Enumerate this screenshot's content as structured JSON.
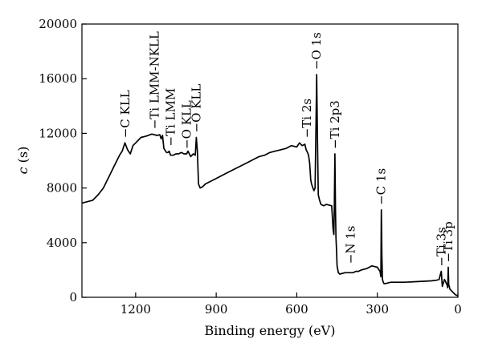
{
  "chart_data": {
    "type": "line",
    "title": "",
    "xlabel": "Binding energy (eV)",
    "ylabel_symbol": "c",
    "ylabel_unit": "(s)",
    "xlim": [
      1400,
      0
    ],
    "ylim": [
      0,
      20000
    ],
    "x_reversed": true,
    "grid": false,
    "legend": "none",
    "line_color": "#000000",
    "x_ticks": [
      1200,
      900,
      600,
      300,
      0
    ],
    "y_ticks": [
      0,
      4000,
      8000,
      12000,
      16000,
      20000
    ],
    "series": [
      {
        "x": [
          1400,
          1380,
          1360,
          1340,
          1320,
          1300,
          1280,
          1260,
          1250,
          1240,
          1230,
          1220,
          1210,
          1200,
          1180,
          1160,
          1140,
          1120,
          1110,
          1105,
          1100,
          1095,
          1085,
          1080,
          1075,
          1070,
          1060,
          1050,
          1040,
          1030,
          1020,
          1010,
          1005,
          995,
          985,
          978,
          974,
          970,
          966,
          960,
          950,
          940,
          920,
          900,
          880,
          860,
          840,
          820,
          800,
          780,
          760,
          740,
          720,
          700,
          680,
          660,
          640,
          620,
          600,
          590,
          580,
          570,
          565,
          560,
          556,
          552,
          548,
          545,
          540,
          536,
          532,
          529,
          526,
          523,
          520,
          515,
          510,
          500,
          490,
          480,
          470,
          465,
          462,
          460,
          458,
          456,
          454,
          452,
          450,
          445,
          440,
          420,
          400,
          390,
          380,
          370,
          360,
          340,
          320,
          300,
          290,
          287,
          285,
          283,
          281,
          278,
          275,
          270,
          250,
          200,
          150,
          100,
          80,
          70,
          65,
          62,
          58,
          50,
          40,
          38,
          36,
          34,
          32,
          30,
          20,
          10,
          0
        ],
        "y": [
          6900,
          7000,
          7100,
          7500,
          8000,
          8800,
          9600,
          10400,
          10700,
          11300,
          10800,
          10500,
          11100,
          11300,
          11700,
          11800,
          11950,
          11850,
          11900,
          11600,
          11850,
          10900,
          10600,
          10600,
          10700,
          10400,
          10400,
          10500,
          10500,
          10600,
          10500,
          10500,
          10700,
          10300,
          10500,
          10400,
          11700,
          10700,
          8300,
          8000,
          8100,
          8300,
          8500,
          8700,
          8900,
          9100,
          9300,
          9500,
          9700,
          9900,
          10100,
          10300,
          10400,
          10600,
          10700,
          10800,
          10900,
          11100,
          11000,
          11300,
          11100,
          11200,
          10800,
          10600,
          10400,
          9800,
          8600,
          8300,
          8000,
          7800,
          8000,
          12000,
          16300,
          11500,
          7500,
          7100,
          6800,
          6700,
          6800,
          6750,
          6700,
          5000,
          4600,
          6800,
          10500,
          6500,
          4400,
          3500,
          2300,
          1800,
          1700,
          1800,
          1800,
          1800,
          1900,
          1900,
          2000,
          2100,
          2300,
          2200,
          1900,
          1500,
          6400,
          3000,
          1300,
          1100,
          1000,
          1000,
          1100,
          1100,
          1150,
          1200,
          1250,
          1300,
          1700,
          1900,
          800,
          1300,
          900,
          700,
          2200,
          900,
          800,
          600,
          400,
          200,
          100
        ]
      }
    ],
    "peak_labels": [
      {
        "text": "C KLL",
        "x": 1238,
        "y": 11300
      },
      {
        "text": "Ti LMM-NKLL",
        "x": 1130,
        "y": 11950
      },
      {
        "text": "Ti LMM",
        "x": 1070,
        "y": 10700
      },
      {
        "text": "O KLL",
        "x": 1010,
        "y": 10500
      },
      {
        "text": "O KLL",
        "x": 974,
        "y": 11700
      },
      {
        "text": "Ti 2s",
        "x": 562,
        "y": 11300
      },
      {
        "text": "O 1s",
        "x": 526,
        "y": 16300
      },
      {
        "text": "Ti 2p3",
        "x": 458,
        "y": 10500
      },
      {
        "text": "N 1s",
        "x": 400,
        "y": 2100
      },
      {
        "text": "C 1s",
        "x": 285,
        "y": 6400
      },
      {
        "text": "Ti 3s",
        "x": 62,
        "y": 1900
      },
      {
        "text": "Ti 3p",
        "x": 36,
        "y": 2200
      }
    ]
  }
}
